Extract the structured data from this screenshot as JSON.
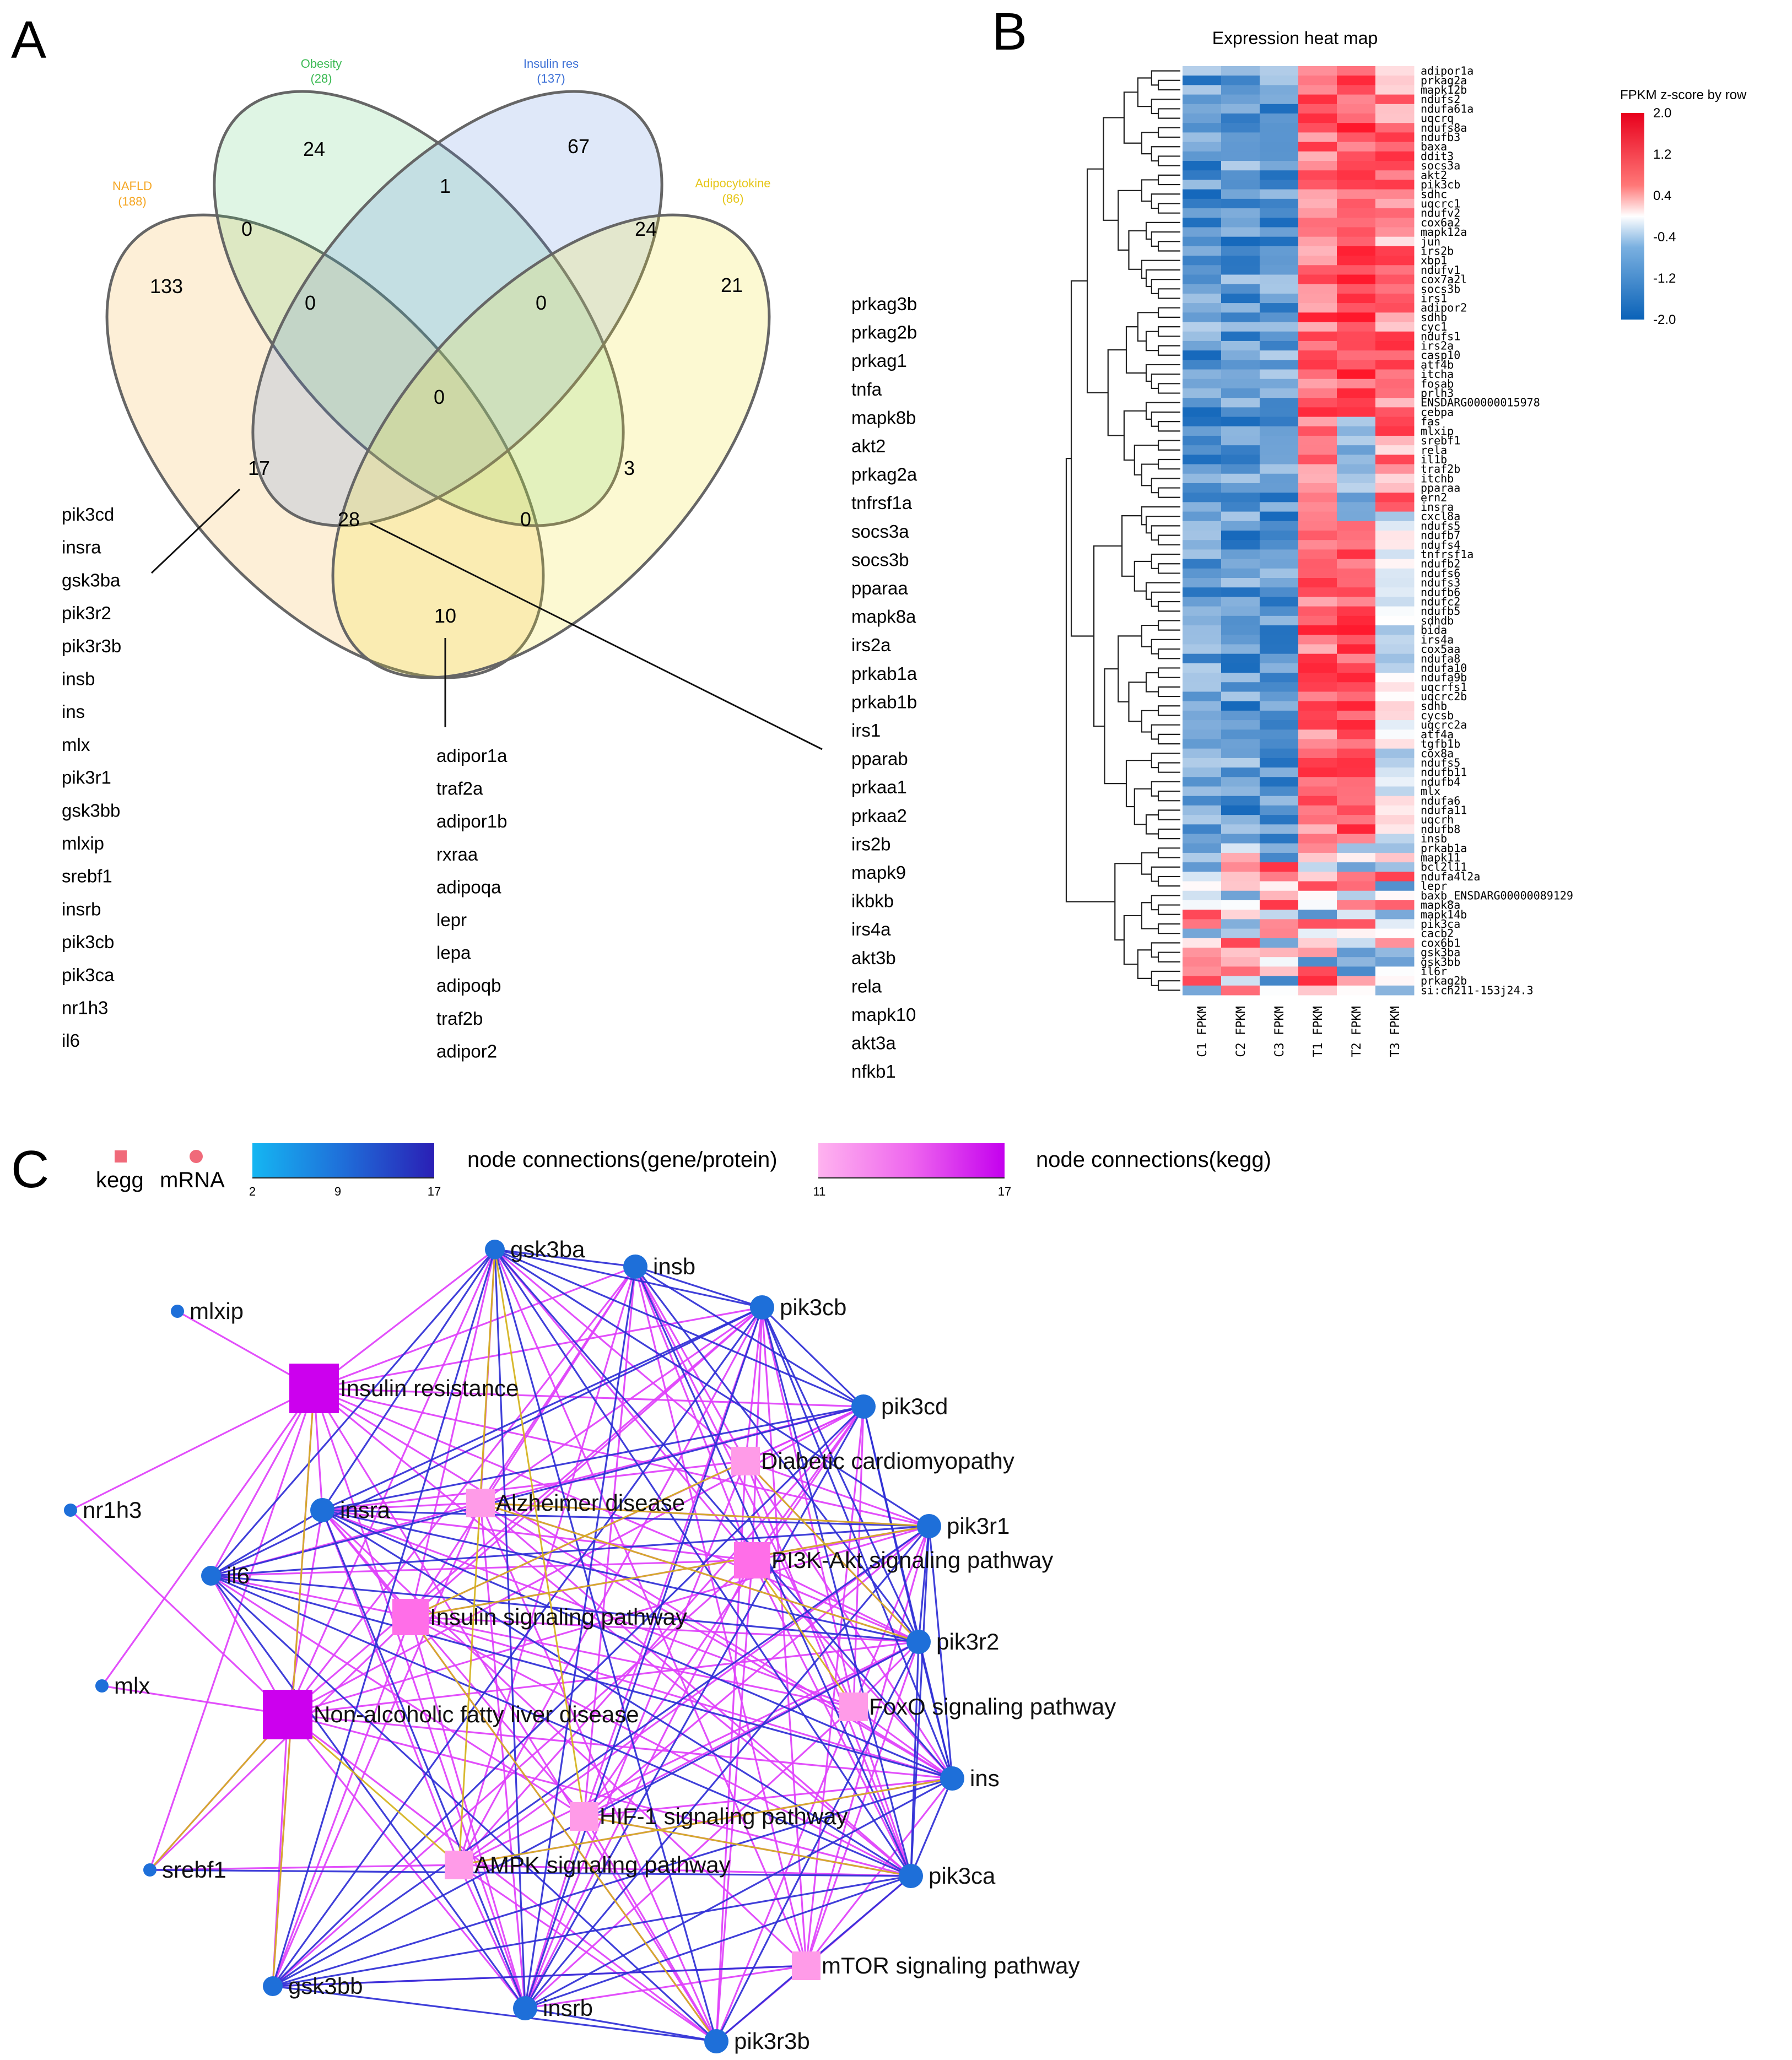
{
  "panels": {
    "A": "A",
    "B": "B",
    "C": "C"
  },
  "venn": {
    "sets": [
      {
        "name": "NAFLD",
        "count": "(188)",
        "color": "#f5a623"
      },
      {
        "name": "Obesity",
        "count": "(28)",
        "color": "#3cba54"
      },
      {
        "name": "Insulin res",
        "count": "(137)",
        "color": "#3b6fd6"
      },
      {
        "name": "Adipocytokine",
        "count": "(86)",
        "color": "#e6c619"
      }
    ],
    "numbers": {
      "obesity_only": "24",
      "insulin_only": "67",
      "obesity_insulin": "1",
      "nafld_obesity": "0",
      "insulin_adipo": "24",
      "nafld_only": "133",
      "nafld_obesity_insulin": "0",
      "obesity_insulin_adipo": "0",
      "adipo_only": "21",
      "all_four": "0",
      "nafld_insulin": "17",
      "obesity_adipo": "3",
      "nafld_insulin_adipo": "28",
      "nafld_obesity_adipo": "0",
      "nafld_adipo": "10"
    },
    "list_17": [
      "pik3cd",
      "insra",
      "gsk3ba",
      "pik3r2",
      "pik3r3b",
      "insb",
      "ins",
      "mlx",
      "pik3r1",
      "gsk3bb",
      "mlxip",
      "srebf1",
      "insrb",
      "pik3cb",
      "pik3ca",
      "nr1h3",
      "il6"
    ],
    "list_10": [
      "adipor1a",
      "traf2a",
      "adipor1b",
      "rxraa",
      "adipoqa",
      "lepr",
      "lepa",
      "adipoqb",
      "traf2b",
      "adipor2"
    ],
    "list_28": [
      "prkag3b",
      "prkag2b",
      "prkag1",
      "tnfa",
      "mapk8b",
      "akt2",
      "prkag2a",
      "tnfrsf1a",
      "socs3a",
      "socs3b",
      "pparaa",
      "mapk8a",
      "irs2a",
      "prkab1a",
      "prkab1b",
      "irs1",
      "pparab",
      "prkaa1",
      "prkaa2",
      "irs2b",
      "mapk9",
      "ikbkb",
      "irs4a",
      "akt3b",
      "rela",
      "mapk10",
      "akt3a",
      "nfkb1"
    ]
  },
  "heatmap": {
    "title": "Expression heat map",
    "legend_title": "FPKM z-score by row",
    "legend_ticks": [
      "2.0",
      "1.2",
      "0.4",
      "-0.4",
      "-1.2",
      "-2.0"
    ],
    "columns": [
      "C1 FPKM",
      "C2 FPKM",
      "C3 FPKM",
      "T1 FPKM",
      "T2 FPKM",
      "T3 FPKM"
    ],
    "rows": [
      "adipor1a",
      "prkag2a",
      "mapk12b",
      "ndufs2",
      "ndufa61a",
      "uqcrq",
      "ndufs8a",
      "ndufb3",
      "baxa",
      "ddit3",
      "socs3a",
      "akt2",
      "pik3cb",
      "sdhc",
      "uqcrc1",
      "ndufv2",
      "cox6a2",
      "mapk12a",
      "jun",
      "irs2b",
      "xbp1",
      "ndufv1",
      "cox7a2l",
      "socs3b",
      "irs1",
      "adipor2",
      "sdhb",
      "cyc1",
      "ndufs1",
      "irs2a",
      "casp10",
      "atf4b",
      "itcha",
      "fosab",
      "prlh3",
      "ENSDARG00000015978",
      "cebpa",
      "fas",
      "mlxip",
      "srebf1",
      "rela",
      "il1b",
      "traf2b",
      "itchb",
      "pparaa",
      "ern2",
      "insra",
      "cxcl8a",
      "ndufs5",
      "ndufb7",
      "ndufs4",
      "tnfrsf1a",
      "ndufb2",
      "ndufs6",
      "ndufs3",
      "ndufb6",
      "ndufc2",
      "ndufb5",
      "sdhdb",
      "bida",
      "irs4a",
      "cox5aa",
      "ndufa8",
      "ndufa10",
      "ndufa9b",
      "uqcrfs1",
      "uqcrc2b",
      "sdhb",
      "cycsb",
      "uqcrc2a",
      "atf4a",
      "tgfb1b",
      "cox8a",
      "ndufs5",
      "ndufb11",
      "ndufb4",
      "mlx",
      "ndufa6",
      "ndufa11",
      "uqcrh",
      "ndufb8",
      "insb",
      "prkab1a",
      "mapk11",
      "bcl2l11",
      "ndufa4l2a",
      "lepr",
      "baxb_ENSDARG00000089129",
      "mapk8a",
      "mapk14b",
      "pik3ca",
      "cacb2",
      "cox6b1",
      "gsk3ba",
      "gsk3bb",
      "il6r",
      "prkag2b",
      "si:ch211-153j24.3"
    ]
  },
  "network": {
    "legend": {
      "kegg": "kegg",
      "mrna": "mRNA",
      "gene_bar_label": "node connections(gene/protein)",
      "gene_ticks": [
        "2",
        "9",
        "17"
      ],
      "kegg_bar_label": "node connections(kegg)",
      "kegg_ticks": [
        "11",
        "17"
      ]
    },
    "kegg_nodes": [
      {
        "id": "ir",
        "label": "Insulin resistance",
        "size": "large"
      },
      {
        "id": "ad",
        "label": "Alzheimer disease",
        "size": "small"
      },
      {
        "id": "dc",
        "label": "Diabetic cardiomyopathy",
        "size": "small"
      },
      {
        "id": "pi3k",
        "label": "PI3K-Akt signaling pathway",
        "size": "medium"
      },
      {
        "id": "isp",
        "label": "Insulin signaling pathway",
        "size": "medium"
      },
      {
        "id": "nafld",
        "label": "Non-alcoholic fatty liver disease",
        "size": "large"
      },
      {
        "id": "foxo",
        "label": "FoxO signaling pathway",
        "size": "small"
      },
      {
        "id": "hif",
        "label": "HIF-1 signaling pathway",
        "size": "small"
      },
      {
        "id": "ampk",
        "label": "AMPK signaling pathway",
        "size": "small"
      },
      {
        "id": "mtor",
        "label": "mTOR signaling pathway",
        "size": "small"
      }
    ],
    "gene_nodes": [
      {
        "id": "gsk3ba",
        "label": "gsk3ba",
        "size": "small"
      },
      {
        "id": "insb",
        "label": "insb",
        "size": "medium"
      },
      {
        "id": "pik3cb",
        "label": "pik3cb",
        "size": "medium"
      },
      {
        "id": "mlxip",
        "label": "mlxip",
        "size": "tiny"
      },
      {
        "id": "pik3cd",
        "label": "pik3cd",
        "size": "medium"
      },
      {
        "id": "nr1h3",
        "label": "nr1h3",
        "size": "tiny"
      },
      {
        "id": "insra",
        "label": "insra",
        "size": "medium"
      },
      {
        "id": "pik3r1",
        "label": "pik3r1",
        "size": "medium"
      },
      {
        "id": "il6",
        "label": "il6",
        "size": "small"
      },
      {
        "id": "pik3r2",
        "label": "pik3r2",
        "size": "medium"
      },
      {
        "id": "mlx",
        "label": "mlx",
        "size": "tiny"
      },
      {
        "id": "ins",
        "label": "ins",
        "size": "medium"
      },
      {
        "id": "srebf1",
        "label": "srebf1",
        "size": "tiny"
      },
      {
        "id": "pik3ca",
        "label": "pik3ca",
        "size": "medium"
      },
      {
        "id": "gsk3bb",
        "label": "gsk3bb",
        "size": "small"
      },
      {
        "id": "insrb",
        "label": "insrb",
        "size": "medium"
      },
      {
        "id": "pik3r3b",
        "label": "pik3r3b",
        "size": "medium"
      }
    ]
  },
  "colors": {
    "kegg_edge": "#e040fb",
    "gene_edge": "#2f2fd6",
    "mixed_edge": "#d4b21a",
    "gene_node": "#1e6fd9",
    "kegg_node_small": "#ff9be8",
    "kegg_node_large": "#cc00ee"
  }
}
